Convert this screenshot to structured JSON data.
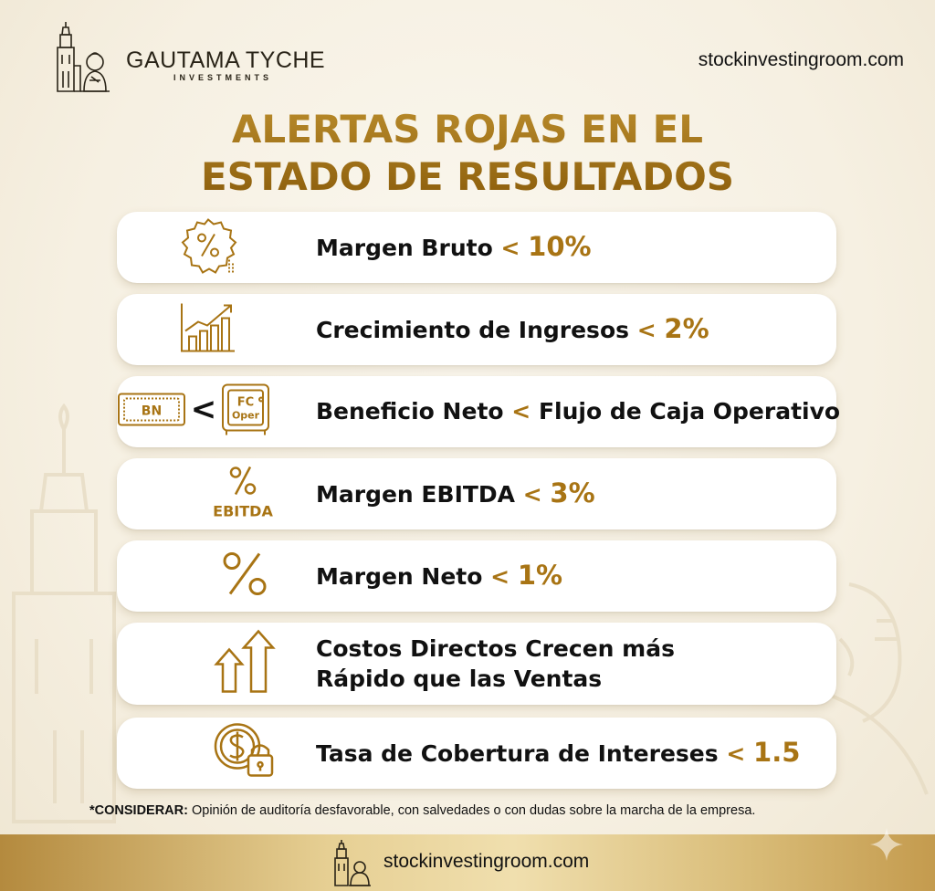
{
  "brand": {
    "name": "GAUTAMA TYCHE",
    "subtitle": "INVESTMENTS",
    "website": "stockinvestingroom.com"
  },
  "title": {
    "line1": "ALERTAS ROJAS EN EL",
    "line2": "ESTADO DE RESULTADOS"
  },
  "alerts": [
    {
      "icon": "percent-badge-icon",
      "label": "Margen Bruto",
      "op": "<",
      "value": "10%"
    },
    {
      "icon": "growth-chart-icon",
      "label": "Crecimiento de Ingresos",
      "op": "<",
      "value": "2%"
    },
    {
      "icon": "bn-vs-fc-icon",
      "badge_left": "BN",
      "badge_op": "<",
      "badge_right_top": "FC",
      "badge_right_bottom": "Oper",
      "label": "Beneficio Neto",
      "op": "<",
      "value": "Flujo de Caja Operativo"
    },
    {
      "icon": "percent-ebitda-icon",
      "icon_text": "EBITDA",
      "label": "Margen EBITDA",
      "op": "<",
      "value": "3%"
    },
    {
      "icon": "percent-icon",
      "label": "Margen Neto",
      "op": "<",
      "value": "1%"
    },
    {
      "icon": "double-up-arrow-icon",
      "line1": "Costos Directos Crecen más",
      "line2": "Rápido que las Ventas"
    },
    {
      "icon": "coin-lock-icon",
      "label": "Tasa de Cobertura de Intereses",
      "op": "<",
      "value": "1.5"
    }
  ],
  "footnote": {
    "prefix": "*CONSIDERAR:",
    "text": " Opinión de auditoría desfavorable, con salvedades o con dudas sobre la marcha de la empresa."
  },
  "footer": {
    "website": "stockinvestingroom.com"
  },
  "colors": {
    "gold": "#a87414",
    "title_gold": "#9a6a12",
    "background": "#f6f0e2",
    "card": "#ffffff"
  }
}
